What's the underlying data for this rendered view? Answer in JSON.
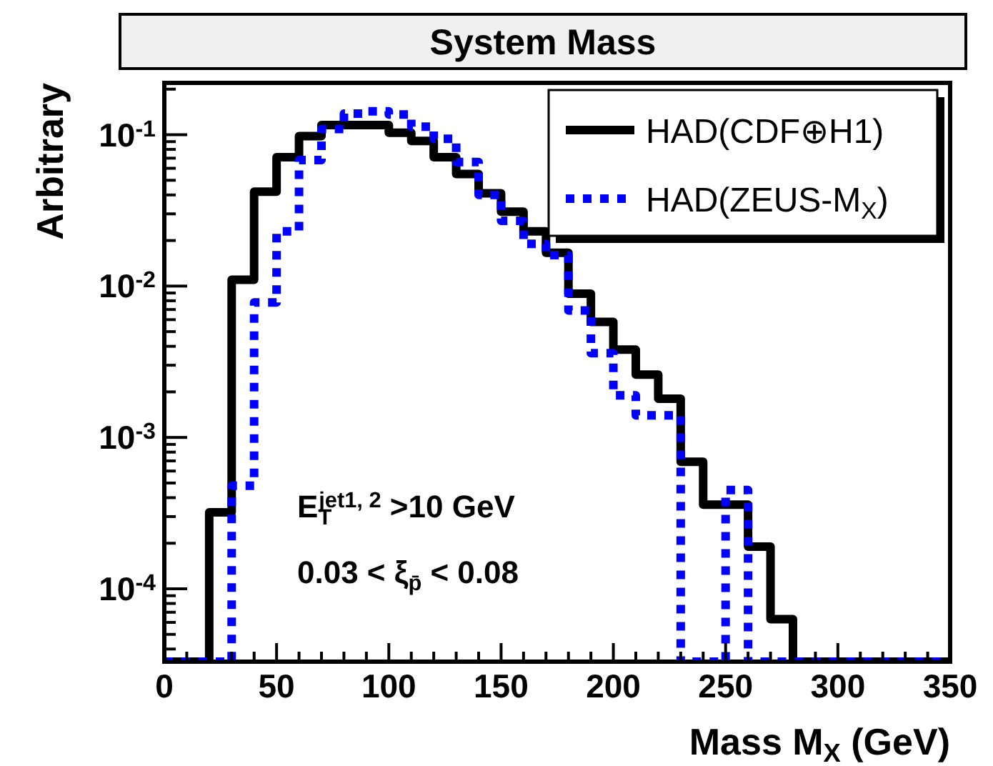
{
  "chart_data": {
    "type": "histogram",
    "title": "System Mass",
    "xlabel": "Mass M$_{X}$ (GeV)",
    "ylabel": "Arbitrary",
    "annotations": [
      "E$_{T}$$^{jet1, 2}$ >10 GeV",
      "0.03 < ξ$_{p̄}$ < 0.08"
    ],
    "bins": [
      0,
      10,
      20,
      30,
      40,
      50,
      60,
      70,
      80,
      90,
      100,
      110,
      120,
      130,
      140,
      150,
      160,
      170,
      180,
      190,
      200,
      210,
      220,
      230,
      240,
      250,
      260,
      270,
      280,
      290,
      300,
      310,
      320,
      330,
      340,
      350
    ],
    "series": [
      {
        "name": "HAD(CDF⊕H1)",
        "color": "#000000",
        "line_style": "solid",
        "values": [
          null,
          null,
          0.00032,
          0.011,
          0.042,
          0.071,
          0.098,
          0.116,
          0.116,
          0.116,
          0.103,
          0.091,
          0.071,
          0.055,
          0.041,
          0.031,
          0.023,
          0.0166,
          0.0089,
          0.0058,
          0.0038,
          0.0026,
          0.0018,
          0.00069,
          0.00036,
          0.00036,
          0.00019,
          6.3e-05,
          null,
          null,
          null,
          null,
          null,
          null,
          null
        ]
      },
      {
        "name": "HAD(ZEUS-M$_{X}$)",
        "color": "#0000ff",
        "line_style": "dotted",
        "values": [
          null,
          null,
          null,
          0.00048,
          0.0078,
          0.023,
          0.068,
          0.109,
          0.138,
          0.143,
          0.136,
          0.113,
          0.094,
          0.066,
          0.04,
          0.027,
          0.019,
          0.016,
          0.0069,
          0.0036,
          0.0019,
          0.0014,
          0.0014,
          null,
          null,
          0.00045,
          null,
          null,
          null,
          null,
          null,
          null,
          null,
          null,
          null
        ]
      }
    ],
    "log": "y",
    "xlim": [
      0,
      350
    ],
    "ylim": [
      3.3e-05,
      0.22
    ],
    "xticks": [
      0,
      {
        "value": 10,
        "label": null
      },
      {
        "value": 20,
        "label": null
      },
      {
        "value": 30,
        "label": null
      },
      {
        "value": 40,
        "label": null
      },
      50,
      {
        "value": 60,
        "label": null
      },
      {
        "value": 70,
        "label": null
      },
      {
        "value": 80,
        "label": null
      },
      {
        "value": 90,
        "label": null
      },
      100,
      {
        "value": 110,
        "label": null
      },
      {
        "value": 120,
        "label": null
      },
      {
        "value": 130,
        "label": null
      },
      {
        "value": 140,
        "label": null
      },
      150,
      {
        "value": 160,
        "label": null
      },
      {
        "value": 170,
        "label": null
      },
      {
        "value": 180,
        "label": null
      },
      {
        "value": 190,
        "label": null
      },
      200,
      {
        "value": 210,
        "label": null
      },
      {
        "value": 220,
        "label": null
      },
      {
        "value": 230,
        "label": null
      },
      {
        "value": 240,
        "label": null
      },
      250,
      {
        "value": 260,
        "label": null
      },
      {
        "value": 270,
        "label": null
      },
      {
        "value": 280,
        "label": null
      },
      {
        "value": 290,
        "label": null
      },
      300,
      {
        "value": 310,
        "label": null
      },
      {
        "value": 320,
        "label": null
      },
      {
        "value": 330,
        "label": null
      },
      {
        "value": 340,
        "label": null
      },
      350
    ],
    "yticks": [
      {
        "value": 4e-05,
        "label": null
      },
      {
        "value": 5e-05,
        "label": null
      },
      {
        "value": 6e-05,
        "label": null
      },
      {
        "value": 7e-05,
        "label": null
      },
      {
        "value": 8e-05,
        "label": null
      },
      {
        "value": 9e-05,
        "label": null
      },
      {
        "value": 0.0001,
        "label": "10$^{-4}$"
      },
      {
        "value": 0.0002,
        "label": null
      },
      {
        "value": 0.0003,
        "label": null
      },
      {
        "value": 0.0004,
        "label": null
      },
      {
        "value": 0.0005,
        "label": null
      },
      {
        "value": 0.0006,
        "label": null
      },
      {
        "value": 0.0007,
        "label": null
      },
      {
        "value": 0.0008,
        "label": null
      },
      {
        "value": 0.0009,
        "label": null
      },
      {
        "value": 0.001,
        "label": "10$^{-3}$"
      },
      {
        "value": 0.002,
        "label": null
      },
      {
        "value": 0.003,
        "label": null
      },
      {
        "value": 0.004,
        "label": null
      },
      {
        "value": 0.005,
        "label": null
      },
      {
        "value": 0.006,
        "label": null
      },
      {
        "value": 0.007,
        "label": null
      },
      {
        "value": 0.008,
        "label": null
      },
      {
        "value": 0.009,
        "label": null
      },
      {
        "value": 0.01,
        "label": "10$^{-2}$"
      },
      {
        "value": 0.02,
        "label": null
      },
      {
        "value": 0.03,
        "label": null
      },
      {
        "value": 0.04,
        "label": null
      },
      {
        "value": 0.05,
        "label": null
      },
      {
        "value": 0.06,
        "label": null
      },
      {
        "value": 0.07,
        "label": null
      },
      {
        "value": 0.08,
        "label": null
      },
      {
        "value": 0.09,
        "label": null
      },
      {
        "value": 0.1,
        "label": "10$^{-1}$"
      },
      {
        "value": 0.2,
        "label": null
      }
    ],
    "grid": false,
    "legend": "top right"
  }
}
